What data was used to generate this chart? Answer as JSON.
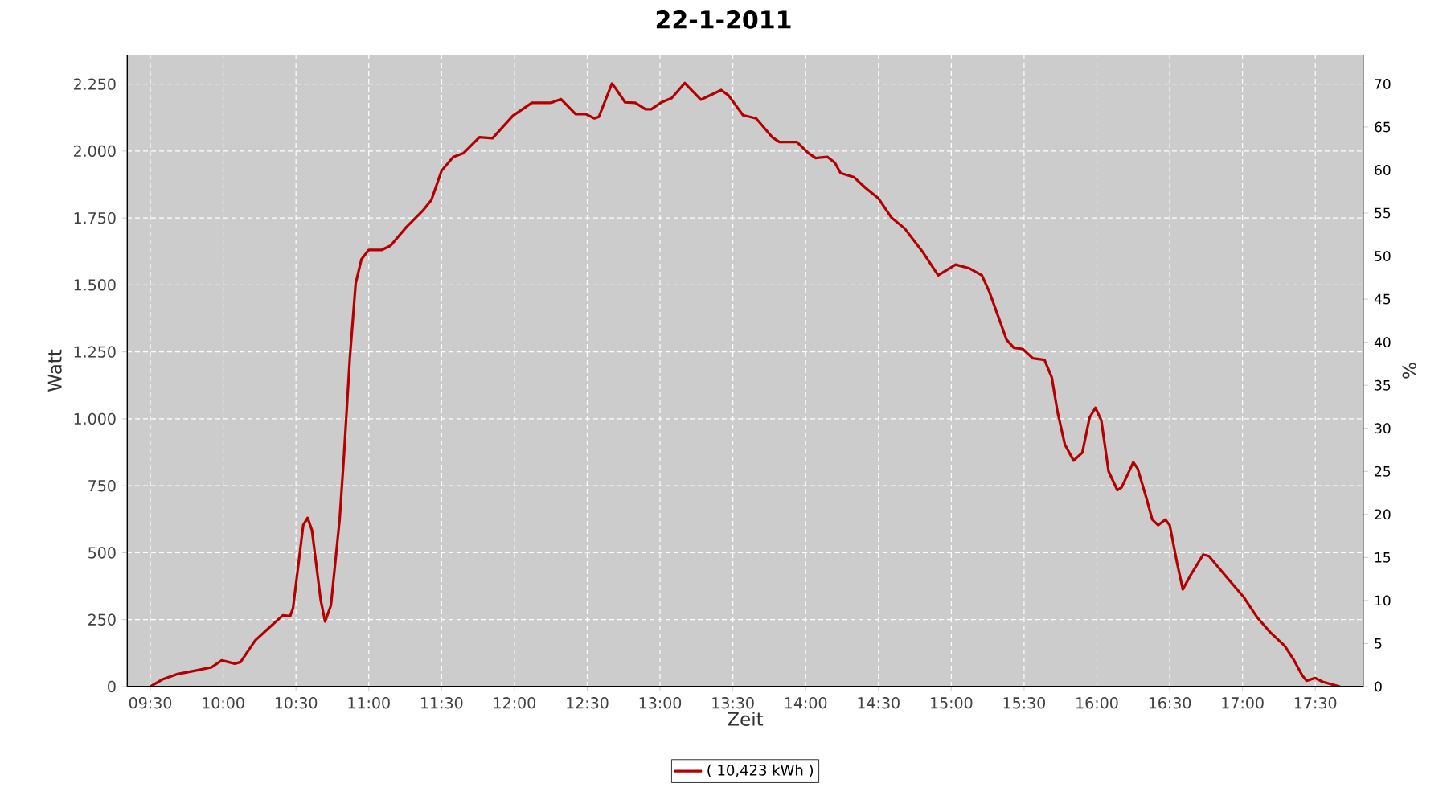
{
  "chart_data": {
    "type": "line",
    "title": "22-1-2011",
    "xlabel": "Zeit",
    "ylabel": "Watt",
    "y2label": "%",
    "xlim": [
      9.34,
      17.83
    ],
    "ylim": [
      0,
      2360
    ],
    "y2lim": [
      0,
      73.4
    ],
    "xticks": [
      {
        "value": 9.5,
        "label": "09:30"
      },
      {
        "value": 10,
        "label": "10:00"
      },
      {
        "value": 10.5,
        "label": "10:30"
      },
      {
        "value": 11,
        "label": "11:00"
      },
      {
        "value": 11.5,
        "label": "11:30"
      },
      {
        "value": 12,
        "label": "12:00"
      },
      {
        "value": 12.5,
        "label": "12:30"
      },
      {
        "value": 13,
        "label": "13:00"
      },
      {
        "value": 13.5,
        "label": "13:30"
      },
      {
        "value": 14,
        "label": "14:00"
      },
      {
        "value": 14.5,
        "label": "14:30"
      },
      {
        "value": 15,
        "label": "15:00"
      },
      {
        "value": 15.5,
        "label": "15:30"
      },
      {
        "value": 16,
        "label": "16:00"
      },
      {
        "value": 16.5,
        "label": "16:30"
      },
      {
        "value": 17,
        "label": "17:00"
      },
      {
        "value": 17.5,
        "label": "17:30"
      }
    ],
    "yticks": [
      0,
      {
        "value": 250,
        "label": "250"
      },
      {
        "value": 500,
        "label": "500"
      },
      {
        "value": 750,
        "label": "750"
      },
      {
        "value": 1000,
        "label": "1.000"
      },
      {
        "value": 1250,
        "label": "1.250"
      },
      {
        "value": 1500,
        "label": "1.500"
      },
      {
        "value": 1750,
        "label": "1.750"
      },
      {
        "value": 2000,
        "label": "2.000"
      },
      {
        "value": 2250,
        "label": "2.250"
      }
    ],
    "y2ticks": [
      0,
      5,
      10,
      15,
      20,
      25,
      30,
      35,
      40,
      45,
      50,
      55,
      60,
      65,
      70
    ],
    "grid": true,
    "legend": "bottom",
    "line_style": "solid",
    "marker": "none",
    "series": [
      {
        "name": "( 10,423 kWh )",
        "color": "#b40000",
        "x": [
          9.5,
          9.58,
          9.68,
          9.83,
          9.92,
          9.99,
          10.08,
          10.12,
          10.22,
          10.32,
          10.41,
          10.46,
          10.48,
          10.55,
          10.58,
          10.61,
          10.67,
          10.7,
          10.74,
          10.8,
          10.83,
          10.87,
          10.91,
          10.95,
          11.0,
          11.09,
          11.15,
          11.26,
          11.37,
          11.43,
          11.5,
          11.58,
          11.65,
          11.76,
          11.85,
          11.99,
          12.12,
          12.25,
          12.32,
          12.42,
          12.49,
          12.55,
          12.58,
          12.67,
          12.69,
          12.76,
          12.83,
          12.9,
          12.94,
          13.01,
          13.08,
          13.17,
          13.28,
          13.42,
          13.47,
          13.57,
          13.66,
          13.77,
          13.82,
          13.94,
          14.02,
          14.07,
          14.15,
          14.2,
          14.24,
          14.33,
          14.41,
          14.5,
          14.59,
          14.68,
          14.8,
          14.91,
          15.03,
          15.12,
          15.21,
          15.26,
          15.32,
          15.38,
          15.43,
          15.49,
          15.56,
          15.64,
          15.69,
          15.73,
          15.78,
          15.84,
          15.9,
          15.95,
          15.99,
          16.03,
          16.08,
          16.14,
          16.17,
          16.25,
          16.28,
          16.34,
          16.38,
          16.42,
          16.47,
          16.5,
          16.55,
          16.59,
          16.64,
          16.73,
          16.77,
          16.9,
          17.01,
          17.1,
          17.19,
          17.29,
          17.35,
          17.41,
          17.44,
          17.5,
          17.55,
          17.67
        ],
        "values": [
          0,
          26,
          46,
          62,
          72,
          98,
          86,
          92,
          172,
          222,
          266,
          263,
          293,
          603,
          630,
          584,
          323,
          243,
          303,
          624,
          865,
          1226,
          1506,
          1596,
          1631,
          1631,
          1647,
          1717,
          1777,
          1817,
          1927,
          1978,
          1992,
          2052,
          2048,
          2132,
          2180,
          2180,
          2194,
          2138,
          2138,
          2122,
          2128,
          2252,
          2238,
          2182,
          2180,
          2156,
          2156,
          2182,
          2198,
          2254,
          2192,
          2228,
          2208,
          2134,
          2122,
          2052,
          2034,
          2034,
          1992,
          1974,
          1978,
          1957,
          1918,
          1903,
          1863,
          1823,
          1751,
          1711,
          1626,
          1536,
          1576,
          1563,
          1536,
          1476,
          1386,
          1295,
          1265,
          1261,
          1226,
          1220,
          1155,
          1025,
          904,
          844,
          874,
          1005,
          1041,
          995,
          804,
          734,
          744,
          838,
          814,
          704,
          624,
          603,
          624,
          603,
          463,
          363,
          413,
          493,
          487,
          403,
          333,
          259,
          203,
          152,
          102,
          42,
          22,
          32,
          18,
          0
        ]
      }
    ]
  }
}
